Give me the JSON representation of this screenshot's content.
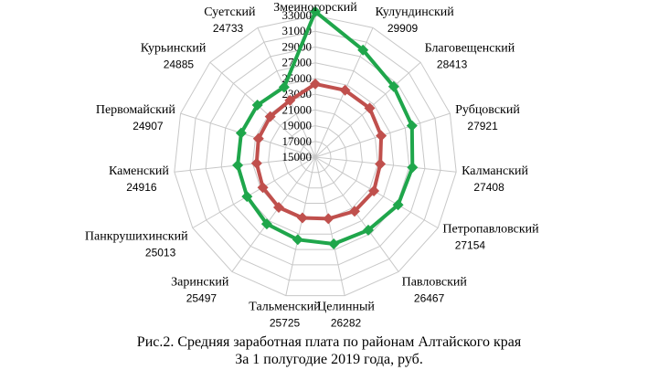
{
  "chart_data": {
    "type": "radar",
    "title": "",
    "categories": [
      "Змеиногорский",
      "Кулундинский",
      "Благовещенский",
      "Рубцовский",
      "Калманский",
      "Петропавловский",
      "Павловский",
      "Целинный",
      "Тальменский",
      "Заринский",
      "Панкрушихинский",
      "Каменский",
      "Первомайский",
      "Курьинский",
      "Суетский"
    ],
    "category_values": [
      "",
      "29909",
      "28413",
      "27921",
      "27408",
      "27154",
      "26467",
      "26282",
      "25725",
      "25497",
      "25013",
      "24916",
      "24907",
      "24885",
      "24733"
    ],
    "rlim": [
      15000,
      33000
    ],
    "r_ticks": [
      15000,
      17000,
      19000,
      21000,
      23000,
      25000,
      27000,
      29000,
      31000,
      33000
    ],
    "grid": true,
    "legend": "none",
    "series": [
      {
        "color": "#1fa64b",
        "marker": "diamond",
        "values": [
          33500,
          29909,
          28413,
          27921,
          27408,
          27154,
          26467,
          26282,
          25725,
          25497,
          25013,
          24916,
          24907,
          24885,
          24733
        ]
      },
      {
        "color": "#c0504d",
        "marker": "diamond",
        "values": [
          24300,
          24300,
          24300,
          23800,
          23300,
          23600,
          23500,
          23000,
          22900,
          22900,
          22700,
          22500,
          22600,
          22700,
          22900
        ]
      }
    ]
  },
  "caption": {
    "line1": "Рис.2. Средняя заработная плата по районам Алтайского края",
    "line2": "За 1 полугодие 2019 года, руб."
  }
}
